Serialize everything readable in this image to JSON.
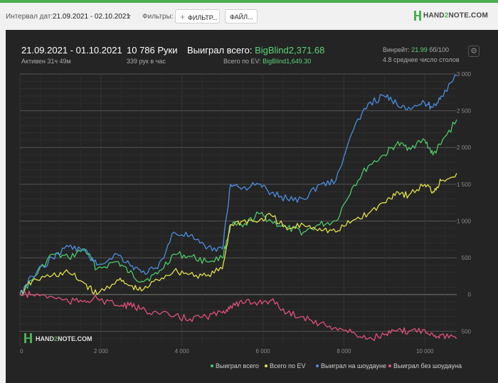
{
  "topbar": {
    "date_interval_label": "Интервал дат:",
    "date_interval_value": "21.09.2021 - 02.10.2021",
    "filters_label": "Фильтры:",
    "filter_button": "ФИЛЬТР...",
    "file_button": "ФАЙЛ...",
    "logo_text_a": "HAND",
    "logo_text_b": "2",
    "logo_text_c": "NOTE.COM"
  },
  "summary": {
    "date_range": "21.09.2021 - 01.10.2021",
    "active": "Активен 31ч 49м",
    "hands": "10 786 Руки",
    "hands_per_hour": "339 рук в час",
    "won_total_label": "Выиграл всего:",
    "won_total_value": "BigBlind2,371.68",
    "ev_total_label": "Всего по EV:",
    "ev_total_value": "BigBlind1,649.30",
    "winrate_label": "Винрейт:",
    "winrate_value": "21.99",
    "winrate_unit": "бб/100",
    "tables_avg": "4.8 среднее число столов"
  },
  "watermark": {
    "a": "HAND",
    "b": "2",
    "c": "NOTE.COM"
  },
  "chart_data": {
    "type": "line",
    "xlim": [
      0,
      10786
    ],
    "ylim": [
      -700,
      3000
    ],
    "x_ticks": [
      0,
      2000,
      4000,
      6000,
      8000,
      10000
    ],
    "x_tick_labels": [
      "0",
      "2 000",
      "4 000",
      "6 000",
      "8 000",
      "10 000"
    ],
    "y_ticks": [
      3000,
      2500,
      2000,
      1500,
      1000,
      500,
      0,
      -500
    ],
    "y_tick_labels": [
      "3 000",
      "2 500",
      "2 000",
      "1 500",
      "1 000",
      "500",
      "0",
      "500"
    ],
    "legend_position": "bottom-right",
    "series": [
      {
        "name": "Выиграл всего",
        "color": "#4cc96a",
        "x": [
          0,
          300,
          800,
          1200,
          1600,
          1900,
          2400,
          2700,
          3000,
          3400,
          3800,
          4200,
          4600,
          5000,
          5200,
          5500,
          5900,
          6200,
          6600,
          7000,
          7400,
          7800,
          8200,
          8600,
          9000,
          9300,
          9600,
          10000,
          10200,
          10400,
          10786
        ],
        "y": [
          0,
          200,
          550,
          500,
          620,
          350,
          450,
          300,
          180,
          280,
          550,
          520,
          450,
          500,
          950,
          920,
          1100,
          1000,
          900,
          850,
          950,
          1000,
          1450,
          1750,
          1900,
          2050,
          2000,
          2100,
          1900,
          2050,
          2380
        ]
      },
      {
        "name": "Всего по EV",
        "color": "#e0e04a",
        "x": [
          0,
          300,
          800,
          1200,
          1600,
          1900,
          2400,
          2700,
          3000,
          3400,
          3800,
          4200,
          4600,
          5000,
          5200,
          5500,
          5900,
          6200,
          6600,
          7000,
          7400,
          7800,
          8200,
          8600,
          9000,
          9300,
          9600,
          10000,
          10200,
          10400,
          10786
        ],
        "y": [
          0,
          180,
          260,
          300,
          150,
          0,
          200,
          120,
          50,
          200,
          320,
          280,
          250,
          350,
          950,
          1000,
          1000,
          1080,
          880,
          950,
          900,
          850,
          1000,
          1100,
          1250,
          1400,
          1350,
          1500,
          1400,
          1550,
          1650
        ]
      },
      {
        "name": "Выиграл на шоудауне",
        "color": "#4a8fe0",
        "x": [
          0,
          300,
          800,
          1200,
          1600,
          1900,
          2400,
          2700,
          3000,
          3400,
          3800,
          4200,
          4600,
          5000,
          5200,
          5500,
          5900,
          6200,
          6600,
          7000,
          7400,
          7800,
          8200,
          8600,
          9000,
          9300,
          9600,
          10000,
          10200,
          10400,
          10786
        ],
        "y": [
          0,
          250,
          500,
          650,
          600,
          400,
          550,
          420,
          300,
          350,
          850,
          800,
          620,
          620,
          1500,
          1450,
          1500,
          1380,
          1300,
          1300,
          1500,
          1550,
          2200,
          2600,
          2700,
          2600,
          2550,
          2600,
          2550,
          2700,
          2980
        ]
      },
      {
        "name": "Выиграл без шоудауна",
        "color": "#e0507a",
        "x": [
          0,
          300,
          800,
          1200,
          1600,
          1900,
          2400,
          2700,
          3000,
          3400,
          3800,
          4200,
          4600,
          5000,
          5200,
          5500,
          5900,
          6200,
          6600,
          7000,
          7400,
          7800,
          8200,
          8600,
          9000,
          9300,
          9600,
          10000,
          10200,
          10400,
          10786
        ],
        "y": [
          0,
          0,
          -30,
          -100,
          -80,
          -50,
          -150,
          -150,
          -200,
          -250,
          -300,
          -330,
          -300,
          -250,
          -150,
          -120,
          -100,
          -80,
          -250,
          -300,
          -400,
          -450,
          -520,
          -600,
          -550,
          -500,
          -500,
          -480,
          -550,
          -550,
          -600
        ]
      }
    ]
  },
  "legend": [
    "Выиграл всего",
    "Всего по EV",
    "Выиграл на шоудауне",
    "Выиграл без шоудауна"
  ],
  "settings_icon": "gear-icon"
}
